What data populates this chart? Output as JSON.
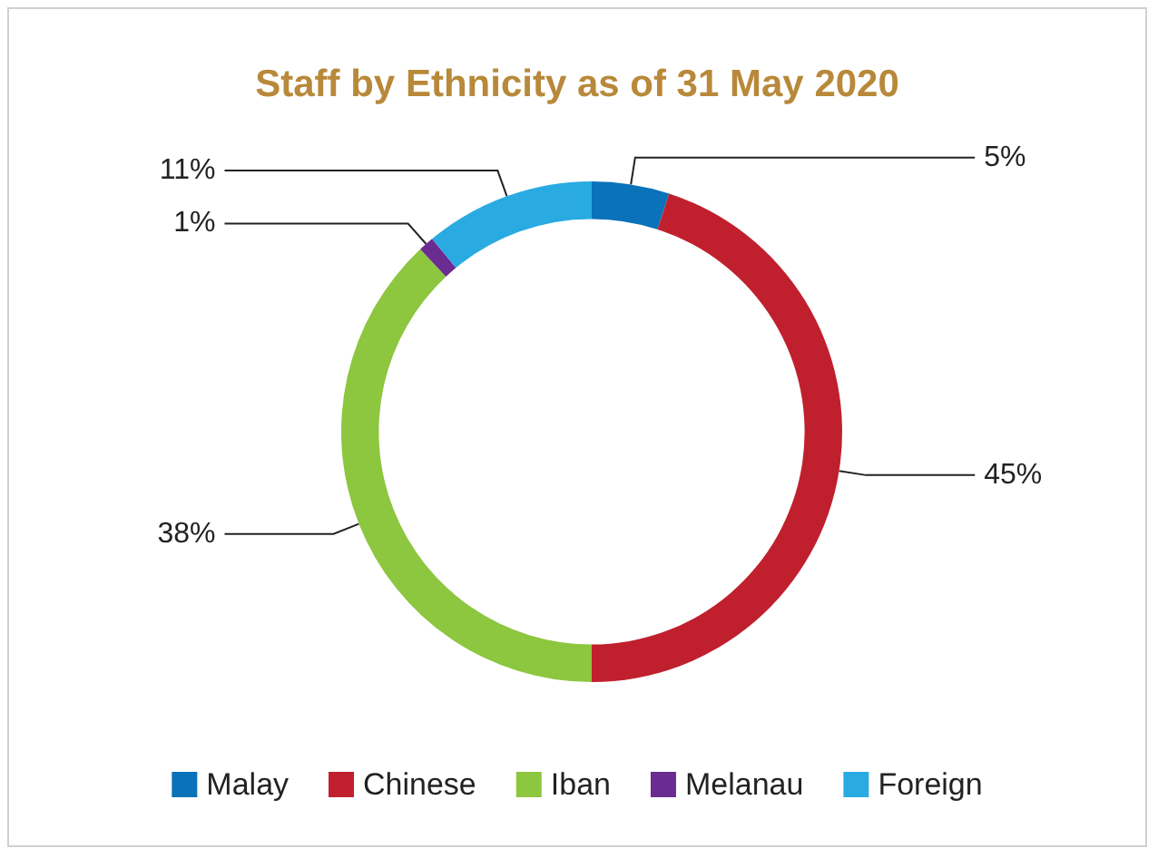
{
  "chart_data": {
    "type": "donut",
    "title": "Staff by Ethnicity as of 31 May 2020",
    "categories": [
      "Malay",
      "Chinese",
      "Iban",
      "Melanau",
      "Foreign"
    ],
    "values": [
      5,
      45,
      38,
      1,
      11
    ],
    "value_labels": [
      "5%",
      "45%",
      "38%",
      "1%",
      "11%"
    ],
    "colors": [
      "#0a72b9",
      "#c0202e",
      "#8dc63f",
      "#6a2c91",
      "#29abe2"
    ],
    "legend": "bottom"
  }
}
